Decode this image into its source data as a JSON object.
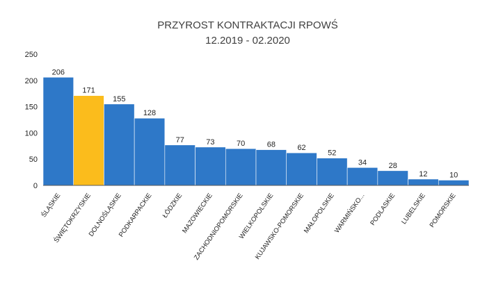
{
  "chart_data": {
    "type": "bar",
    "title": "PRZYROST KONTRAKTACJI RPOWŚ",
    "subtitle": "12.2019 - 02.2020",
    "xlabel": "",
    "ylabel": "",
    "ylim": [
      0,
      250
    ],
    "yticks": [
      "0",
      "50",
      "100",
      "150",
      "200",
      "250"
    ],
    "grid": false,
    "legend": "none",
    "categories": [
      "ŚLĄSKIE",
      "ŚWIĘTOKRZYSKIE",
      "DOLNOŚLĄSKIE",
      "PODKARPACKIE",
      "ŁÓDZKIE",
      "MAZOWIECKIE",
      "ZACHODNIOPOMORSKIE",
      "WIELKOPOLSKIE",
      "KUJAWSKO-POMORSKIE",
      "MAŁOPOLSKIE",
      "WARMIŃSKO...",
      "PODLASKIE",
      "LUBELSKIE",
      "POMORSKIE"
    ],
    "values": [
      206,
      171,
      155,
      128,
      77,
      73,
      70,
      68,
      62,
      52,
      34,
      28,
      12,
      10
    ],
    "data_labels": [
      "206",
      "171",
      "155",
      "128",
      "77",
      "73",
      "70",
      "68",
      "62",
      "52",
      "34",
      "28",
      "12",
      "10"
    ],
    "colors": {
      "bar": "#2E78C8",
      "highlight": "#FBBC1C",
      "axis": "#595959"
    },
    "highlight_index": 1
  }
}
